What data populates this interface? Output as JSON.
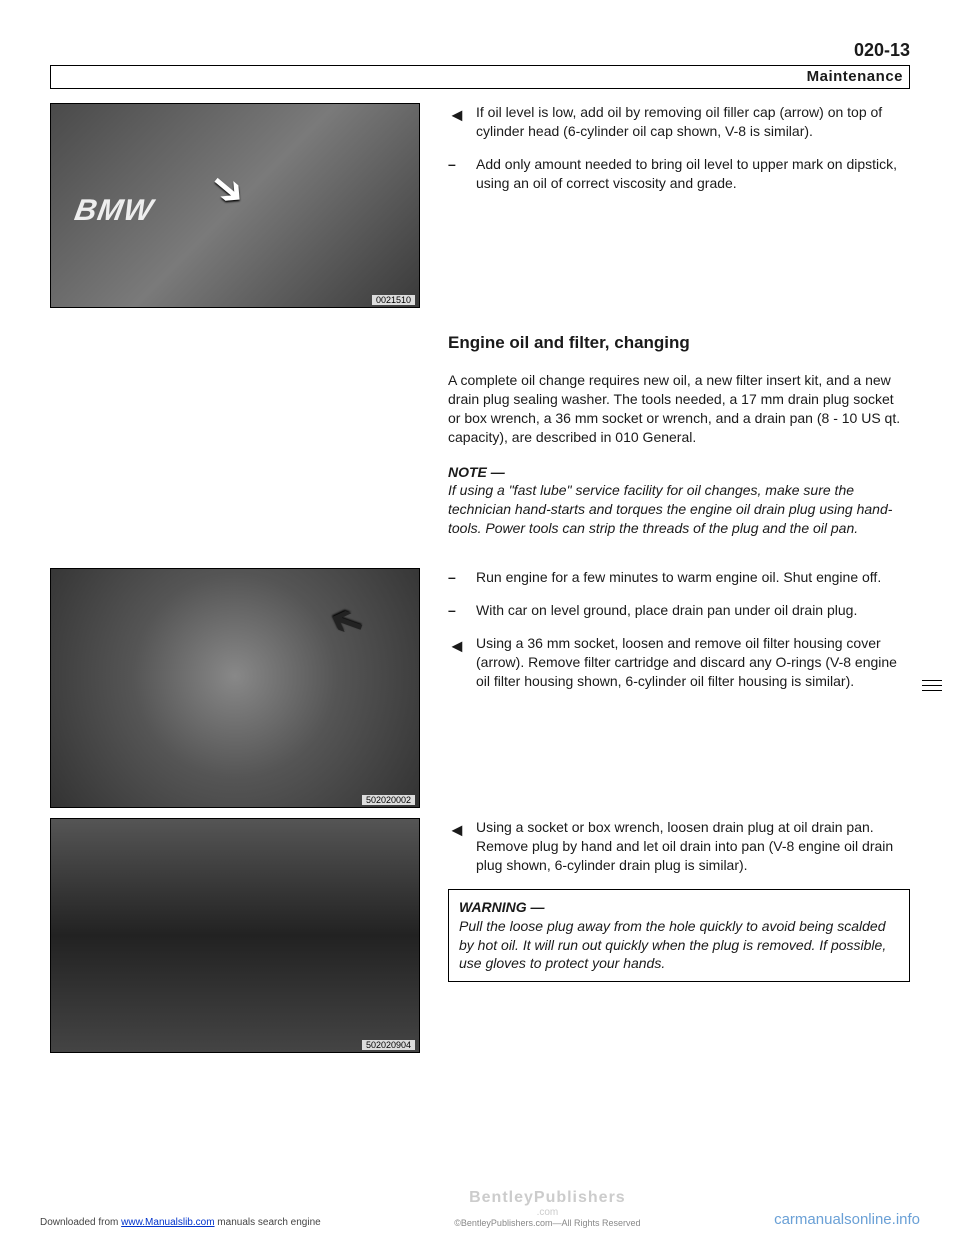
{
  "header": {
    "page_number": "020-13",
    "section": "Maintenance"
  },
  "block1": {
    "tri1": "If oil level is low, add oil by removing oil filler cap (arrow) on top of cylinder head (6-cylinder oil cap shown, V-8 is similar).",
    "dash1": "Add only amount needed to bring oil level to upper mark on dipstick, using an oil of correct viscosity and grade.",
    "img_id": "0021510",
    "bmw": "BMW"
  },
  "block2": {
    "heading": "Engine oil and filter, changing",
    "para1": "A complete oil change requires new oil, a new filter insert kit, and a new drain plug sealing washer. The tools needed, a 17 mm drain plug socket or box wrench, a 36 mm socket or wrench, and a drain pan (8 - 10 US qt. capacity), are described in 010 General.",
    "note_label": "NOTE —",
    "note_body": "If using a \"fast lube\" service facility for oil changes, make sure the technician hand-starts and torques the engine oil drain plug using hand-tools. Power tools can strip the threads of the plug and the oil pan.",
    "dash1": "Run engine for a few minutes to warm engine oil. Shut engine off.",
    "dash2": "With car on level ground, place drain pan under oil drain plug.",
    "tri1": "Using a 36 mm socket, loosen and remove oil filter housing cover (arrow). Remove filter cartridge and discard any O-rings (V-8 engine oil filter housing shown, 6-cylinder oil filter housing is similar).",
    "img_id": "502020002"
  },
  "block3": {
    "tri1": "Using a socket or box wrench, loosen drain plug at oil drain pan. Remove plug by hand and let oil drain into pan (V-8 engine oil drain plug shown, 6-cylinder drain plug is similar).",
    "warn_label": "WARNING —",
    "warn_body": "Pull the loose plug away from the hole quickly to avoid being scalded by hot oil. It will run out quickly when the plug is removed. If possible, use gloves to protect your hands.",
    "img_id": "502020904"
  },
  "footer": {
    "left_pre": "Downloaded from ",
    "left_link": "www.Manualslib.com",
    "left_post": " manuals search engine",
    "publisher": "BentleyPublishers",
    "publisher_dom": ".com",
    "rights": "©BentleyPublishers.com—All Rights Reserved",
    "right": "carmanualsonline.info"
  }
}
